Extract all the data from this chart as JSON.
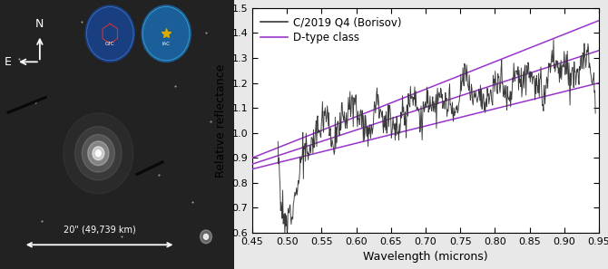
{
  "xlim": [
    0.45,
    0.95
  ],
  "ylim": [
    0.6,
    1.5
  ],
  "xticks": [
    0.45,
    0.5,
    0.55,
    0.6,
    0.65,
    0.7,
    0.75,
    0.8,
    0.85,
    0.9,
    0.95
  ],
  "yticks": [
    0.6,
    0.7,
    0.8,
    0.9,
    1.0,
    1.1,
    1.2,
    1.3,
    1.4,
    1.5
  ],
  "xlabel": "Wavelength (microns)",
  "ylabel": "Relative reflectance",
  "legend_borisov": "C/2019 Q4 (Borisov)",
  "legend_dtype": "D-type class",
  "spectrum_color": "#3a3a3a",
  "dtype_color": "#9933CC",
  "bg_color": "#e8e8e8",
  "plot_bg": "#ffffff",
  "d_type_lines": [
    {
      "x0": 0.45,
      "y0": 0.9,
      "x1": 0.95,
      "y1": 1.45
    },
    {
      "x0": 0.45,
      "y0": 0.875,
      "x1": 0.95,
      "y1": 1.33
    },
    {
      "x0": 0.45,
      "y0": 0.855,
      "x1": 0.95,
      "y1": 1.2
    }
  ],
  "scale_bar_text": "20\" (49,739 km)",
  "compass_N": "N",
  "compass_E": "E"
}
